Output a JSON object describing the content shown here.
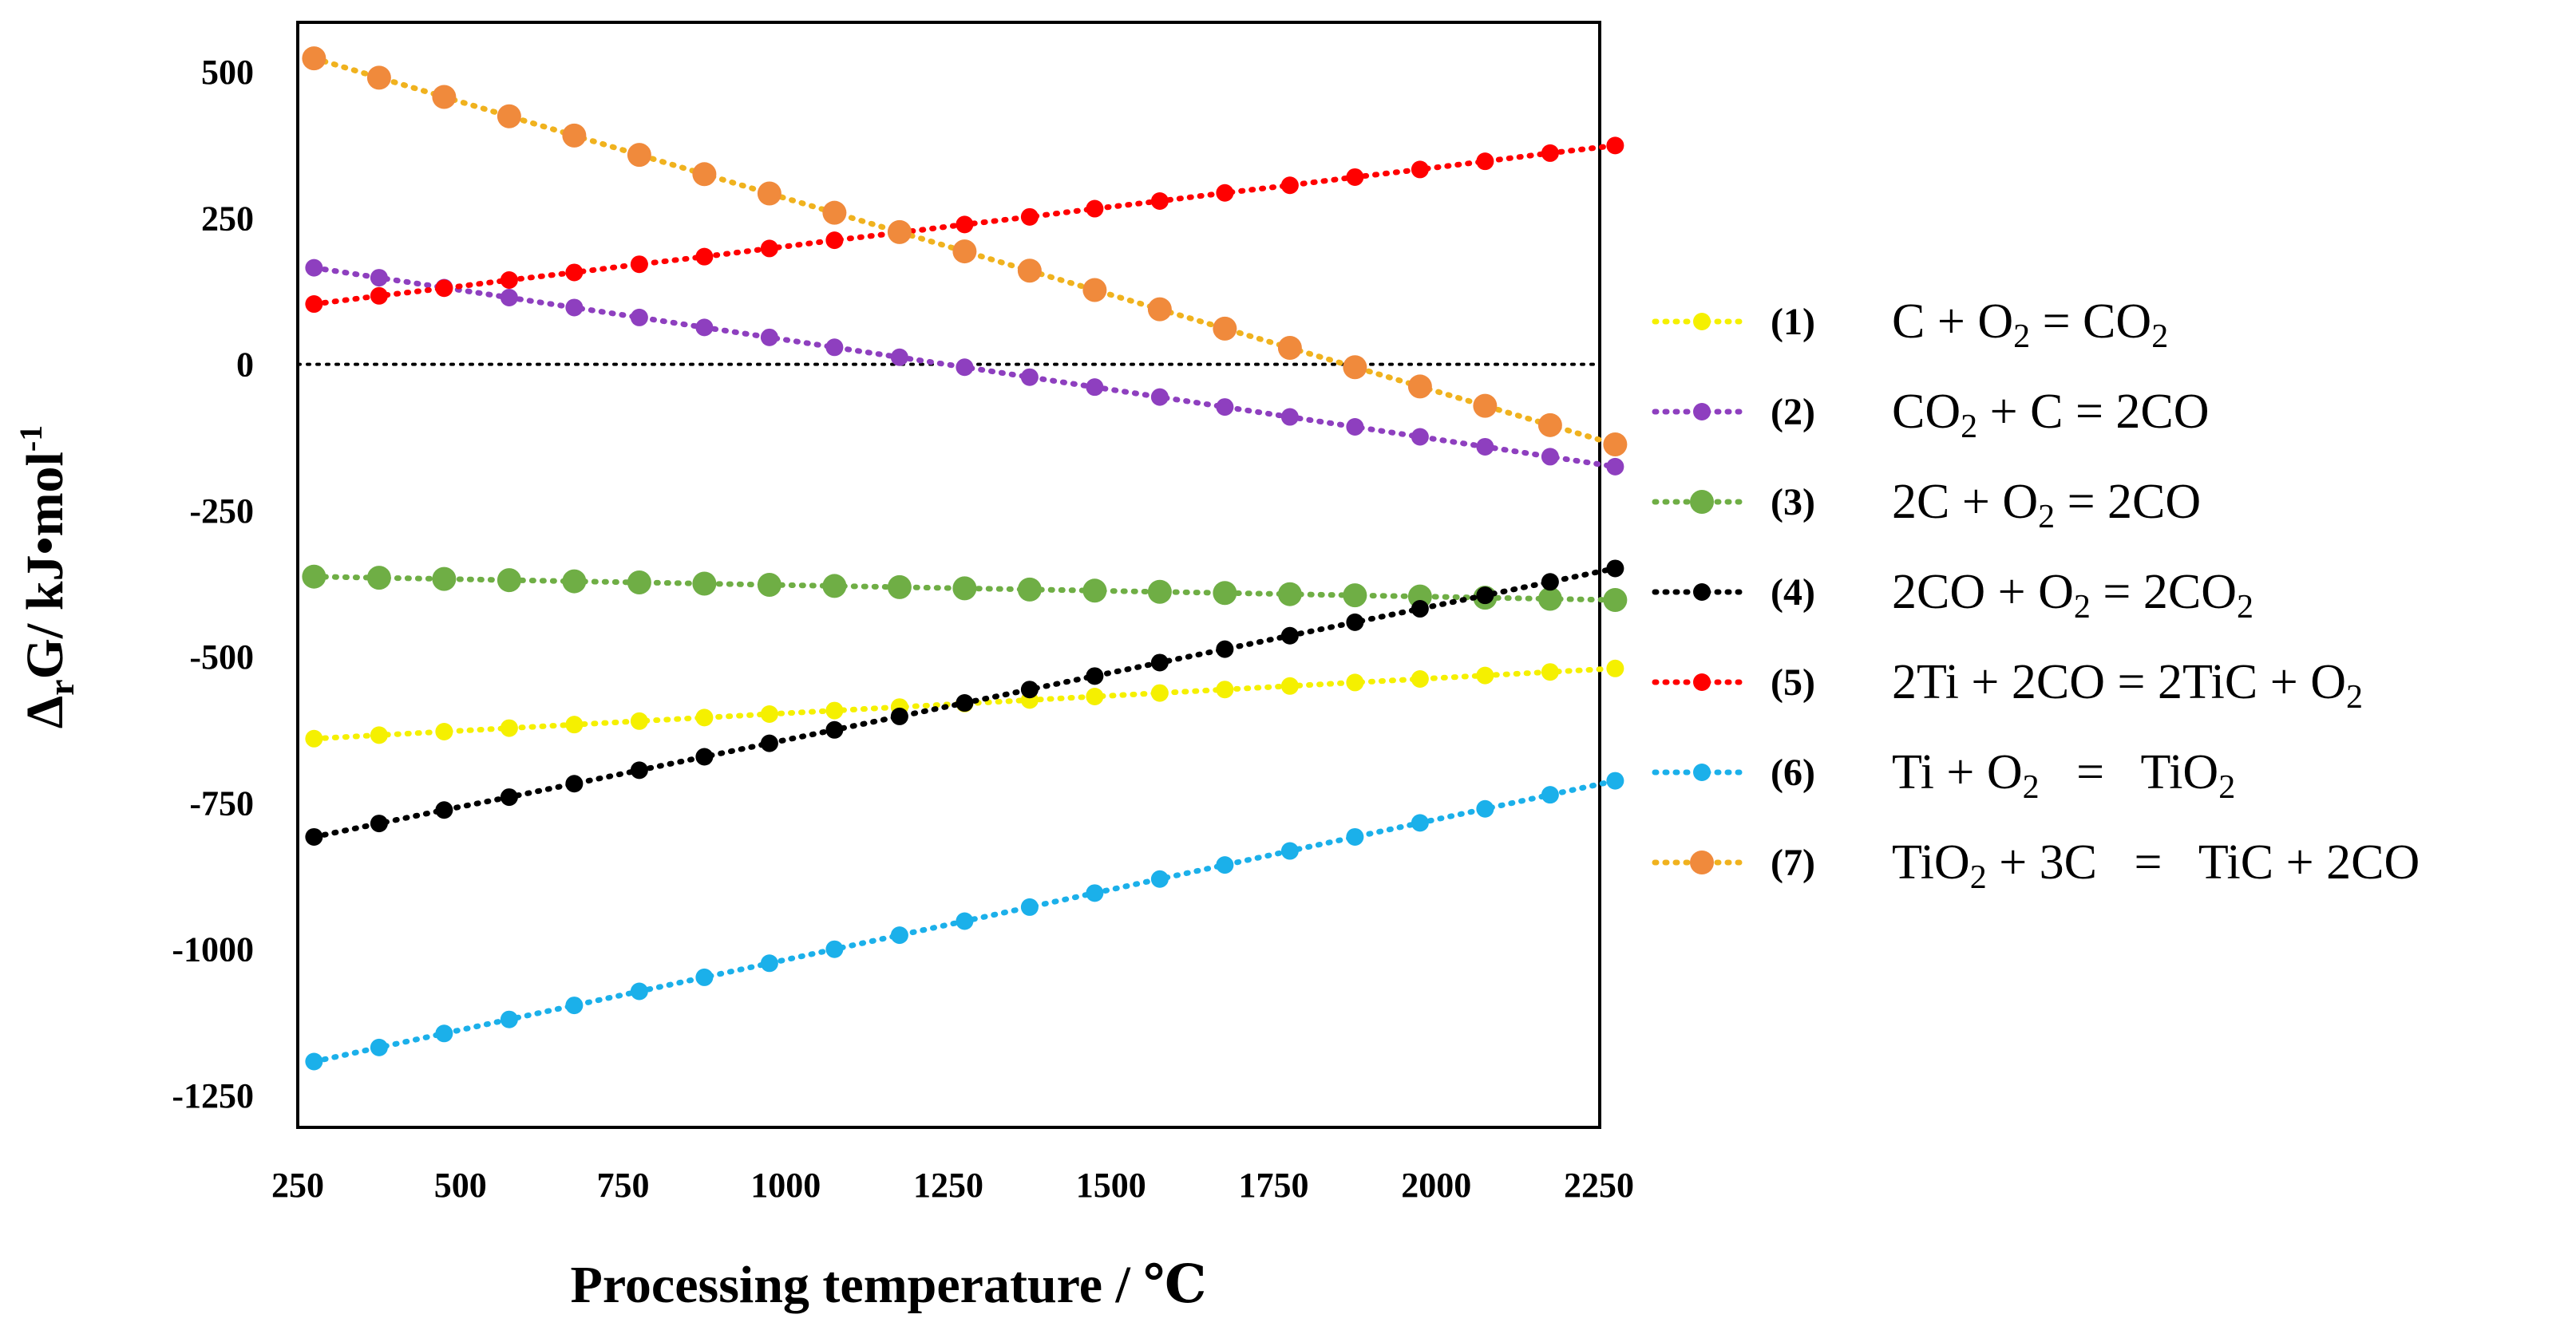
{
  "chart_data": {
    "type": "line",
    "title": "",
    "xlabel": "Processing temperature / ℃",
    "ylabel_parts": {
      "delta": "Δ",
      "sub_r": "r",
      "main": "G/ kJ•mol",
      "sup": "-1"
    },
    "xlim": [
      250,
      2250
    ],
    "ylim": [
      -1250,
      500
    ],
    "x_ticks": [
      "250",
      "500",
      "750",
      "1000",
      "1250",
      "1500",
      "1750",
      "2000",
      "2250"
    ],
    "y_ticks": [
      "500",
      "250",
      "0",
      "-250",
      "-500",
      "-750",
      "-1000",
      "-1250"
    ],
    "x": [
      275,
      375,
      475,
      575,
      675,
      775,
      875,
      975,
      1075,
      1175,
      1275,
      1375,
      1475,
      1575,
      1675,
      1775,
      1875,
      1975,
      2075,
      2175,
      2275
    ],
    "zero_line": true,
    "grid": false,
    "legend_position": "right",
    "series": [
      {
        "name": "(1)",
        "equation": [
          [
            "C + O",
            ""
          ],
          [
            "2",
            "sub"
          ],
          [
            " = CO",
            ""
          ],
          [
            "2",
            "sub"
          ]
        ],
        "color": "#f5f000",
        "values": [
          -640,
          -634,
          -628,
          -622,
          -616,
          -610,
          -604,
          -598,
          -592,
          -586,
          -580,
          -574,
          -568,
          -562,
          -556,
          -550,
          -544,
          -538,
          -532,
          -526,
          -520
        ]
      },
      {
        "name": "(2)",
        "equation": [
          [
            "CO",
            ""
          ],
          [
            "2",
            "sub"
          ],
          [
            " + C = 2CO",
            ""
          ]
        ],
        "color": "#8e3fbf",
        "values": [
          165,
          148,
          131,
          114,
          97,
          80,
          63,
          46,
          29,
          12,
          -5,
          -22,
          -39,
          -56,
          -73,
          -90,
          -107,
          -124,
          -141,
          -158,
          -175
        ]
      },
      {
        "name": "(3)",
        "equation": [
          [
            "2C + O",
            ""
          ],
          [
            "2",
            "sub"
          ],
          [
            " = 2CO",
            ""
          ]
        ],
        "color": "#6fae45",
        "values": [
          -363,
          -365,
          -367,
          -369,
          -371,
          -373,
          -375,
          -377,
          -379,
          -381,
          -383,
          -385,
          -387,
          -389,
          -391,
          -393,
          -395,
          -397,
          -399,
          -401,
          -403
        ]
      },
      {
        "name": "(4)",
        "equation": [
          [
            "2CO + O",
            ""
          ],
          [
            "2",
            "sub"
          ],
          [
            " = 2CO",
            ""
          ],
          [
            "2",
            "sub"
          ]
        ],
        "color": "#000000",
        "values": [
          -808,
          -785,
          -762,
          -740,
          -717,
          -694,
          -671,
          -648,
          -625,
          -602,
          -579,
          -556,
          -533,
          -510,
          -487,
          -464,
          -441,
          -418,
          -395,
          -372,
          -349
        ]
      },
      {
        "name": "(5)",
        "equation": [
          [
            "2Ti + 2CO = 2TiC + O",
            ""
          ],
          [
            "2",
            "sub"
          ]
        ],
        "color": "#ff0000",
        "values": [
          103,
          117,
          130,
          144,
          157,
          171,
          184,
          198,
          212,
          225,
          239,
          252,
          266,
          279,
          293,
          306,
          320,
          333,
          347,
          361,
          374
        ]
      },
      {
        "name": "(6)",
        "equation": [
          [
            "Ti + O",
            ""
          ],
          [
            "2",
            "sub"
          ],
          [
            "   =   TiO",
            ""
          ],
          [
            "2",
            "sub"
          ]
        ],
        "color": "#1bb0ea",
        "values": [
          -1192,
          -1168,
          -1144,
          -1120,
          -1096,
          -1072,
          -1048,
          -1024,
          -1000,
          -976,
          -952,
          -928,
          -904,
          -880,
          -856,
          -832,
          -808,
          -784,
          -760,
          -736,
          -712
        ]
      },
      {
        "name": "(7)",
        "equation": [
          [
            "TiO",
            ""
          ],
          [
            "2",
            "sub"
          ],
          [
            " + 3C   =   TiC + 2CO",
            ""
          ]
        ],
        "color": "#f08a3c",
        "line_color": "#f0b21e",
        "values": [
          523,
          490,
          457,
          424,
          391,
          358,
          325,
          292,
          259,
          226,
          193,
          160,
          127,
          94,
          61,
          28,
          -5,
          -38,
          -71,
          -104,
          -137
        ]
      }
    ]
  }
}
